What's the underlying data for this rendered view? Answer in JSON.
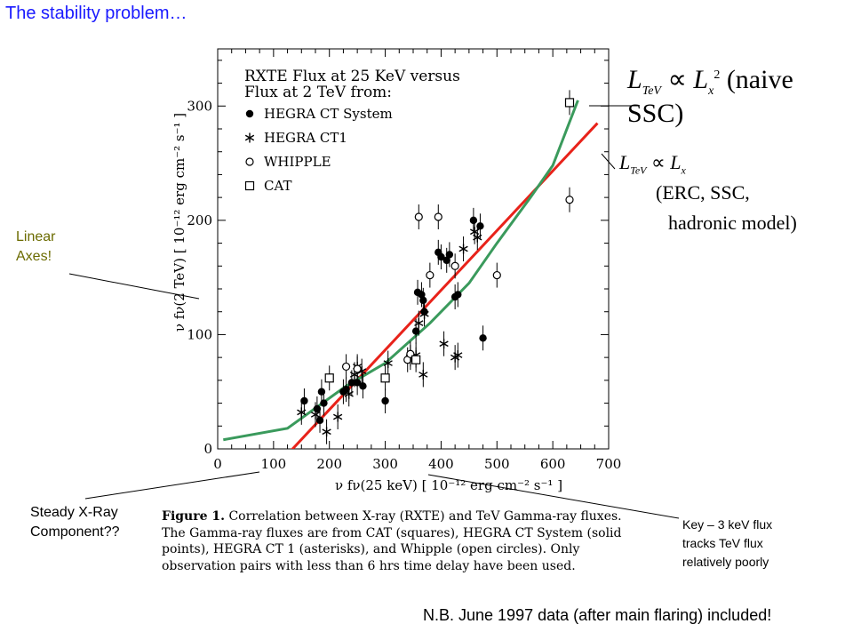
{
  "slide_title": "The stability problem…",
  "annotations": {
    "linear_axes": [
      "Linear",
      "Axes!"
    ],
    "steady_xray": [
      "Steady X-Ray",
      "Component??"
    ],
    "key_note": [
      "Key – 3 keV flux",
      "tracks TeV flux",
      "relatively poorly"
    ],
    "nb_note": "N.B. June 1997 data (after main flaring) included!"
  },
  "equations": {
    "naive_ssc": "L_TeV ∝ L_x² (naive SSC)",
    "linear": "L_TeV ∝ L_x",
    "models_line1": "(ERC, SSC,",
    "models_line2": "hadronic model)"
  },
  "caption": {
    "label": "Figure 1.",
    "text": "Correlation between X-ray (RXTE) and TeV Gamma-ray fluxes. The Gamma-ray fluxes are from CAT (squares), HEGRA CT System (solid points), HEGRA CT 1 (asterisks), and Whipple (open circles). Only observation pairs with less than 6 hrs time delay have been used."
  },
  "chart_data": {
    "type": "scatter",
    "title": "RXTE Flux at 25 KeV versus Flux at 2 TeV from:",
    "xlabel": "ν fν(25 keV) [ 10⁻¹² erg cm⁻² s⁻¹ ]",
    "ylabel": "ν fν(2 TeV) [ 10⁻¹² erg cm⁻² s⁻¹ ]",
    "xlim": [
      0,
      700
    ],
    "ylim": [
      0,
      350
    ],
    "xticks": [
      0,
      100,
      200,
      300,
      400,
      500,
      600,
      700
    ],
    "yticks": [
      0,
      100,
      200,
      300
    ],
    "legend": [
      "HEGRA CT System",
      "HEGRA CT1",
      "WHIPPLE",
      "CAT"
    ],
    "series": [
      {
        "name": "HEGRA CT System",
        "marker": "filled-circle",
        "points": [
          [
            155,
            42
          ],
          [
            178,
            35
          ],
          [
            183,
            25
          ],
          [
            186,
            50
          ],
          [
            190,
            40
          ],
          [
            225,
            50
          ],
          [
            230,
            52
          ],
          [
            240,
            58
          ],
          [
            250,
            58
          ],
          [
            260,
            55
          ],
          [
            300,
            42
          ],
          [
            355,
            103
          ],
          [
            358,
            137
          ],
          [
            365,
            135
          ],
          [
            368,
            130
          ],
          [
            370,
            120
          ],
          [
            395,
            172
          ],
          [
            400,
            168
          ],
          [
            410,
            165
          ],
          [
            415,
            170
          ],
          [
            425,
            133
          ],
          [
            430,
            135
          ],
          [
            458,
            200
          ],
          [
            470,
            195
          ],
          [
            475,
            97
          ]
        ]
      },
      {
        "name": "HEGRA CT1",
        "marker": "asterisk",
        "points": [
          [
            150,
            32
          ],
          [
            175,
            30
          ],
          [
            195,
            15
          ],
          [
            215,
            28
          ],
          [
            235,
            48
          ],
          [
            245,
            65
          ],
          [
            250,
            72
          ],
          [
            258,
            68
          ],
          [
            305,
            75
          ],
          [
            345,
            80
          ],
          [
            355,
            82
          ],
          [
            360,
            110
          ],
          [
            368,
            65
          ],
          [
            370,
            118
          ],
          [
            405,
            92
          ],
          [
            425,
            80
          ],
          [
            430,
            82
          ],
          [
            440,
            175
          ],
          [
            460,
            190
          ],
          [
            465,
            185
          ]
        ]
      },
      {
        "name": "WHIPPLE",
        "marker": "open-circle",
        "points": [
          [
            230,
            72
          ],
          [
            250,
            70
          ],
          [
            340,
            78
          ],
          [
            345,
            83
          ],
          [
            360,
            203
          ],
          [
            380,
            152
          ],
          [
            395,
            203
          ],
          [
            425,
            160
          ],
          [
            500,
            152
          ],
          [
            630,
            218
          ]
        ]
      },
      {
        "name": "CAT",
        "marker": "open-square",
        "points": [
          [
            200,
            62
          ],
          [
            300,
            62
          ],
          [
            355,
            78
          ],
          [
            630,
            303
          ]
        ]
      }
    ],
    "lines": [
      {
        "name": "",
        "color": "#e8221a",
        "points": [
          [
            115,
            -10
          ],
          [
            680,
            285
          ]
        ]
      },
      {
        "name": "",
        "color": "#3a9a5c",
        "points": [
          [
            10,
            8
          ],
          [
            125,
            18
          ],
          [
            230,
            55
          ],
          [
            300,
            75
          ],
          [
            380,
            110
          ],
          [
            450,
            145
          ],
          [
            500,
            180
          ],
          [
            560,
            220
          ],
          [
            600,
            248
          ],
          [
            645,
            305
          ]
        ]
      }
    ]
  }
}
